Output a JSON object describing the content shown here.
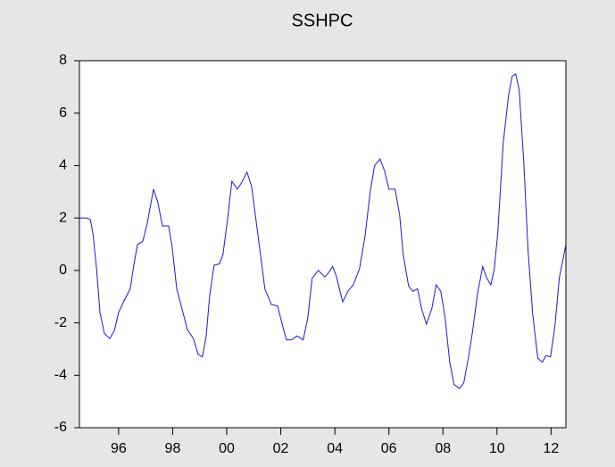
{
  "chart_data": {
    "type": "line",
    "title": "SSHPC",
    "color": "#1a1acc",
    "x": [
      1994.55,
      1994.81,
      1994.95,
      1995.05,
      1995.18,
      1995.31,
      1995.47,
      1995.67,
      1995.84,
      1996.0,
      1996.23,
      1996.43,
      1996.56,
      1996.7,
      1996.89,
      1997.06,
      1997.29,
      1997.45,
      1997.62,
      1997.85,
      1997.98,
      1998.15,
      1998.38,
      1998.54,
      1998.77,
      1998.94,
      1999.1,
      1999.24,
      1999.37,
      1999.53,
      1999.73,
      1999.86,
      2000.03,
      2000.19,
      2000.39,
      2000.52,
      2000.75,
      2000.92,
      2001.08,
      2001.25,
      2001.41,
      2001.65,
      2001.88,
      2002.04,
      2002.21,
      2002.4,
      2002.6,
      2002.83,
      2003.0,
      2003.16,
      2003.39,
      2003.63,
      2003.76,
      2003.92,
      2004.05,
      2004.29,
      2004.48,
      2004.68,
      2004.91,
      2005.11,
      2005.31,
      2005.47,
      2005.67,
      2005.84,
      2006.0,
      2006.23,
      2006.4,
      2006.53,
      2006.73,
      2006.89,
      2007.06,
      2007.22,
      2007.39,
      2007.59,
      2007.75,
      2007.92,
      2008.08,
      2008.25,
      2008.41,
      2008.61,
      2008.77,
      2008.94,
      2009.1,
      2009.27,
      2009.47,
      2009.6,
      2009.77,
      2009.9,
      2010.03,
      2010.23,
      2010.43,
      2010.56,
      2010.69,
      2010.82,
      2010.99,
      2011.15,
      2011.32,
      2011.51,
      2011.68,
      2011.81,
      2011.98,
      2012.14,
      2012.31,
      2012.44,
      2012.54
    ],
    "values": [
      2.0,
      2.0,
      1.95,
      1.4,
      0.1,
      -1.6,
      -2.4,
      -2.6,
      -2.3,
      -1.6,
      -1.1,
      -0.7,
      0.2,
      1.0,
      1.1,
      1.8,
      3.1,
      2.6,
      1.7,
      1.7,
      0.9,
      -0.7,
      -1.6,
      -2.25,
      -2.6,
      -3.2,
      -3.3,
      -2.5,
      -0.95,
      0.2,
      0.25,
      0.6,
      1.95,
      3.4,
      3.1,
      3.3,
      3.75,
      3.2,
      1.95,
      0.6,
      -0.7,
      -1.3,
      -1.35,
      -2.0,
      -2.65,
      -2.65,
      -2.5,
      -2.65,
      -1.8,
      -0.3,
      0.0,
      -0.25,
      -0.1,
      0.15,
      -0.2,
      -1.2,
      -0.8,
      -0.55,
      0.05,
      1.25,
      3.0,
      4.0,
      4.25,
      3.8,
      3.1,
      3.1,
      2.1,
      0.6,
      -0.6,
      -0.8,
      -0.7,
      -1.5,
      -2.05,
      -1.45,
      -0.55,
      -0.8,
      -1.8,
      -3.5,
      -4.35,
      -4.5,
      -4.3,
      -3.35,
      -2.3,
      -0.95,
      0.15,
      -0.25,
      -0.55,
      0.05,
      1.45,
      4.85,
      6.7,
      7.4,
      7.5,
      6.9,
      4.15,
      0.75,
      -1.65,
      -3.35,
      -3.5,
      -3.25,
      -3.3,
      -2.15,
      -0.25,
      0.4,
      0.95
    ],
    "xlim": [
      1994.55,
      2012.55
    ],
    "xticks": [
      {
        "value": 1996,
        "label": "96"
      },
      {
        "value": 1998,
        "label": "98"
      },
      {
        "value": 2000,
        "label": "00"
      },
      {
        "value": 2002,
        "label": "02"
      },
      {
        "value": 2004,
        "label": "04"
      },
      {
        "value": 2006,
        "label": "06"
      },
      {
        "value": 2008,
        "label": "08"
      },
      {
        "value": 2010,
        "label": "10"
      },
      {
        "value": 2012,
        "label": "12"
      }
    ],
    "ylim": [
      -6,
      8
    ],
    "yticks": [
      -6,
      -4,
      -2,
      0,
      2,
      4,
      6,
      8
    ]
  }
}
